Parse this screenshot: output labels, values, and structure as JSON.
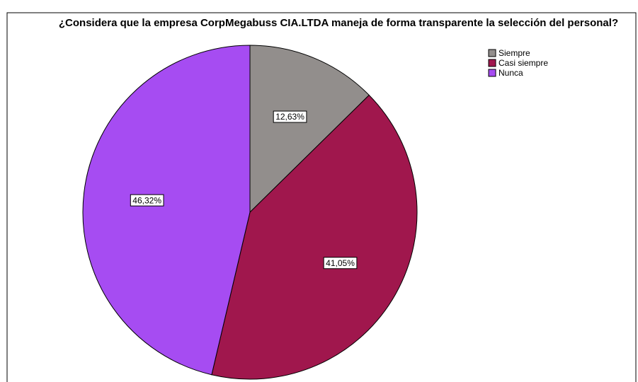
{
  "chart_data": {
    "type": "pie",
    "title": "¿Considera que la empresa CorpMegabuss CIA.LTDA maneja de forma transparente la selección del personal?",
    "categories": [
      "Siempre",
      "Casi siempre",
      "Nunca"
    ],
    "values": [
      12.63,
      41.05,
      46.32
    ],
    "value_labels": [
      "12,63%",
      "41,05%",
      "46,32%"
    ],
    "colors": [
      "#928e8c",
      "#a0174d",
      "#a64cf2"
    ],
    "legend": "top-right"
  }
}
